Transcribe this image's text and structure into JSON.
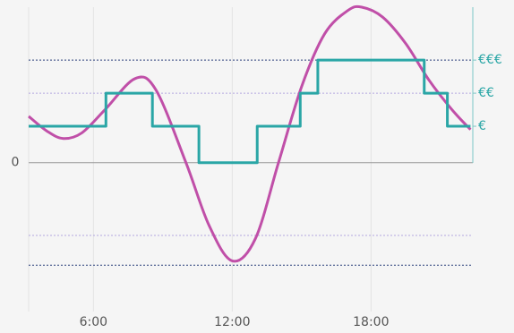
{
  "chart_data": {
    "type": "line",
    "xlim": [
      3.2,
      22.4
    ],
    "ylim": [
      -4.5,
      4.7
    ],
    "xticks": [
      {
        "value": 6,
        "label": "6:00"
      },
      {
        "value": 12,
        "label": "12:00"
      },
      {
        "value": 18,
        "label": "18:00"
      }
    ],
    "yticks": [
      0
    ],
    "y2ticks": [
      {
        "value": 1.1,
        "label": "€"
      },
      {
        "value": 2.1,
        "label": "€€"
      },
      {
        "value": 3.1,
        "label": "€€€"
      }
    ],
    "hlines": [
      {
        "value": 3.1,
        "color": "#2a3f7a"
      },
      {
        "value": 2.1,
        "color": "#b3a6e0"
      },
      {
        "value": -2.2,
        "color": "#b3a6e0"
      },
      {
        "value": -3.1,
        "color": "#2a3f7a"
      }
    ],
    "grid": true,
    "series": [
      {
        "color": "#c04fa8",
        "shape": "smooth",
        "x": [
          3.2,
          4,
          4.7,
          5.5,
          6.5,
          7.8,
          8.7,
          10,
          11,
          12,
          13,
          14,
          15,
          16,
          17,
          17.6,
          18.5,
          19.5,
          20.5,
          21.5,
          22.3
        ],
        "values": [
          1.4,
          0.95,
          0.73,
          0.9,
          1.6,
          2.54,
          2.2,
          0,
          -1.9,
          -2.97,
          -2.3,
          0,
          2.3,
          3.9,
          4.6,
          4.7,
          4.4,
          3.6,
          2.5,
          1.6,
          1.0
        ]
      },
      {
        "color": "#2aa6a6",
        "shape": "step",
        "x": [
          3.2,
          6.54,
          8.55,
          10.56,
          13.08,
          14.94,
          15.7,
          20.3,
          21.3,
          22.3
        ],
        "values": [
          1.1,
          2.1,
          1.1,
          0,
          1.1,
          2.1,
          3.1,
          2.1,
          1.1,
          1.1
        ]
      }
    ]
  }
}
